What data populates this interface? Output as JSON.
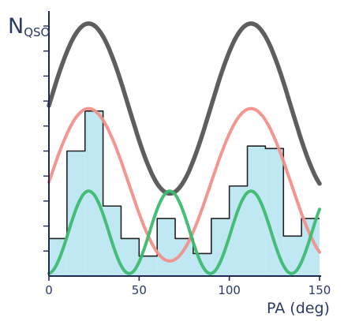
{
  "chart_data": {
    "type": "area",
    "title": "",
    "xlabel": "PA (deg)",
    "ylabel": "N_QSO",
    "ylabel_main": "N",
    "ylabel_sub": "QSO",
    "xlim": [
      0,
      150
    ],
    "ylim": [
      0,
      10.6
    ],
    "x_ticks": [
      0,
      50,
      100,
      150
    ],
    "x_tick_labels": [
      "0",
      "50",
      "100",
      "150"
    ],
    "y_ticks": [
      1,
      2,
      3,
      4,
      5,
      6,
      7,
      8,
      9,
      10
    ],
    "grid": false,
    "legend": "none",
    "histogram": {
      "name": "",
      "bin_edges": [
        0,
        10,
        20,
        30,
        40,
        50,
        60,
        70,
        80,
        90,
        100,
        110,
        120,
        130,
        140,
        150
      ],
      "counts": [
        1.5,
        5.0,
        6.6,
        2.8,
        1.5,
        0.8,
        2.3,
        1.5,
        0.9,
        2.3,
        3.6,
        5.2,
        5.1,
        1.6,
        2.3
      ],
      "color": "#bfe8f2",
      "edge_color": "#222222"
    },
    "series": [
      {
        "name": "",
        "color": "#555555",
        "width": 5.5,
        "x": [],
        "y": []
      },
      {
        "name": "",
        "color": "#f2908a",
        "width": 4,
        "x": [],
        "y": []
      },
      {
        "name": "",
        "color": "#3cbb70",
        "width": 4,
        "x": [],
        "y": []
      }
    ],
    "model": {
      "period": 90,
      "peak_positions": [
        22,
        111
      ]
    }
  }
}
